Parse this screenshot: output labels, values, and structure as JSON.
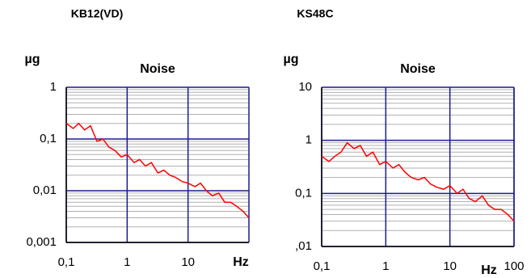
{
  "chart_data": [
    {
      "type": "line",
      "heading": "KB12(VD)",
      "title": "Noise",
      "ylabel": "µg",
      "xlabel": "Hz",
      "xscale": "log",
      "yscale": "log",
      "grid": true,
      "minor_grid": true,
      "xlim": [
        0.1,
        100
      ],
      "ylim": [
        0.001,
        1
      ],
      "xticks": [
        {
          "value": 0.1,
          "label": "0,1"
        },
        1,
        10
      ],
      "yticks": [
        {
          "value": 0.001,
          "label": "0,001"
        },
        {
          "value": 0.01,
          "label": "0,01"
        },
        {
          "value": 0.1,
          "label": "0,1"
        },
        1
      ],
      "x": [
        0.1,
        0.13,
        0.16,
        0.2,
        0.25,
        0.32,
        0.4,
        0.5,
        0.63,
        0.8,
        1,
        1.3,
        1.6,
        2,
        2.5,
        3.2,
        4,
        5,
        6.3,
        8,
        10,
        13,
        16,
        20,
        25,
        32,
        40,
        50,
        63,
        80,
        100
      ],
      "series": [
        {
          "color": "#ff0000",
          "values": [
            0.2,
            0.16,
            0.2,
            0.15,
            0.18,
            0.09,
            0.1,
            0.07,
            0.06,
            0.045,
            0.05,
            0.035,
            0.04,
            0.03,
            0.035,
            0.022,
            0.025,
            0.02,
            0.018,
            0.015,
            0.014,
            0.012,
            0.014,
            0.01,
            0.008,
            0.009,
            0.006,
            0.006,
            0.005,
            0.004,
            0.003
          ]
        }
      ]
    },
    {
      "type": "line",
      "heading": "KS48C",
      "title": "Noise",
      "ylabel": "µg",
      "xlabel": "Hz",
      "xscale": "log",
      "yscale": "log",
      "grid": true,
      "minor_grid": true,
      "xlim": [
        0.1,
        100
      ],
      "ylim": [
        0.01,
        10
      ],
      "xticks": [
        {
          "value": 0.1,
          "label": "0,1"
        },
        1,
        10,
        100
      ],
      "yticks": [
        {
          "value": 0.01,
          "label": ",01"
        },
        {
          "value": 0.1,
          "label": "0,1"
        },
        1,
        10
      ],
      "x": [
        0.1,
        0.13,
        0.16,
        0.2,
        0.25,
        0.32,
        0.4,
        0.5,
        0.63,
        0.8,
        1,
        1.3,
        1.6,
        2,
        2.5,
        3.2,
        4,
        5,
        6.3,
        8,
        10,
        13,
        16,
        20,
        25,
        32,
        40,
        50,
        63,
        80,
        100
      ],
      "series": [
        {
          "color": "#ff0000",
          "values": [
            0.5,
            0.4,
            0.5,
            0.6,
            0.9,
            0.7,
            0.8,
            0.5,
            0.6,
            0.35,
            0.4,
            0.3,
            0.35,
            0.25,
            0.2,
            0.18,
            0.2,
            0.15,
            0.13,
            0.12,
            0.14,
            0.1,
            0.12,
            0.08,
            0.07,
            0.09,
            0.06,
            0.05,
            0.05,
            0.04,
            0.03
          ]
        }
      ]
    }
  ]
}
